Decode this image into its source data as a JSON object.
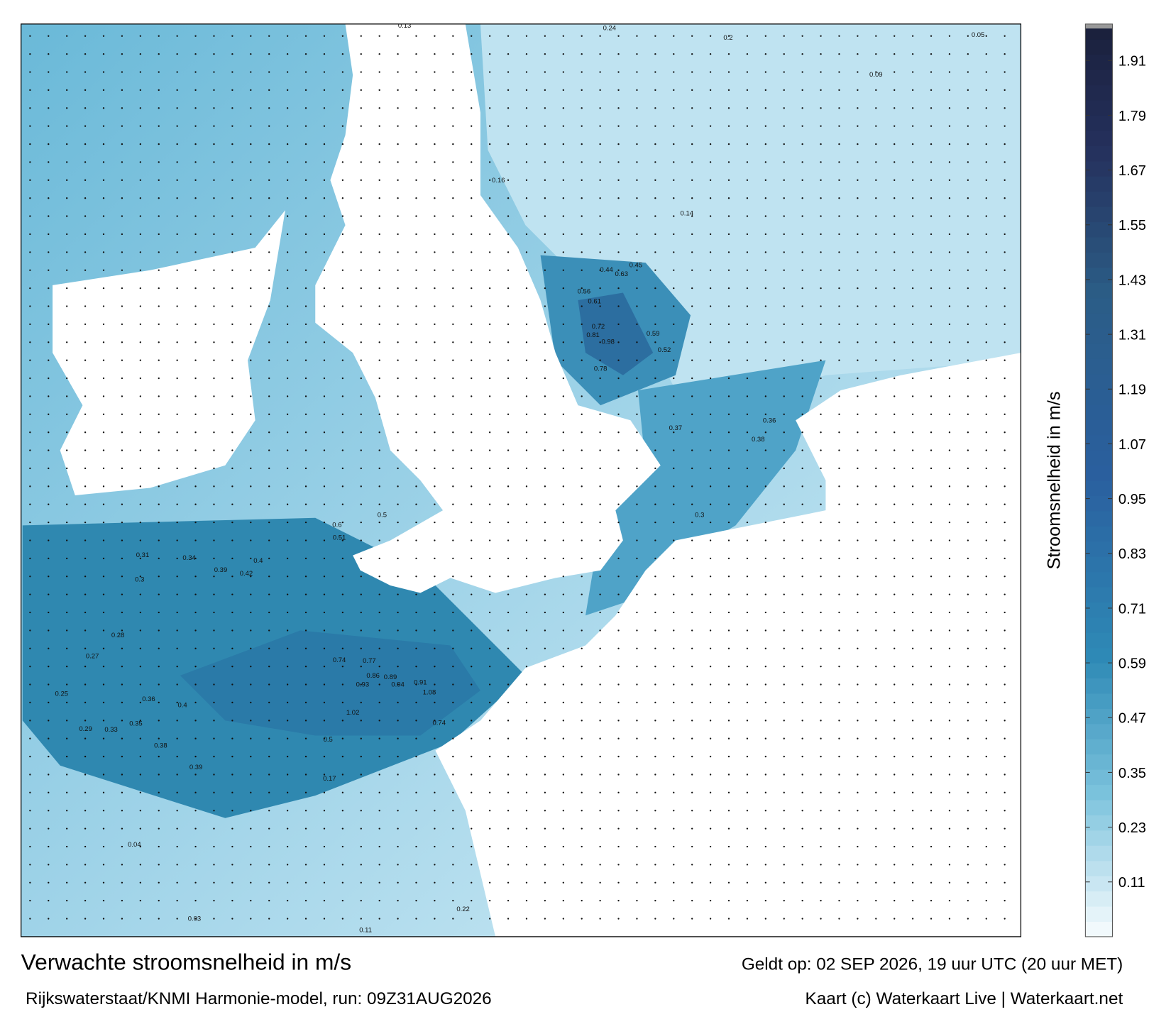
{
  "title": "Verwachte stroomsnelheid in m/s",
  "valid": "Geldt op: 02 SEP 2026, 19 uur UTC (20 uur MET)",
  "source": "Rijkswaterstaat/KNMI Harmonie-model, run: 09Z31AUG2026",
  "credit": "Kaart (c) Waterkaart Live | Waterkaart.net",
  "colorbar": {
    "label": "Stroomsnelheid in m/s",
    "lim": [
      -0.01,
      1.99
    ],
    "ticks": [
      0.11,
      0.23,
      0.35,
      0.47,
      0.59,
      0.71,
      0.83,
      0.95,
      1.07,
      1.19,
      1.31,
      1.43,
      1.55,
      1.67,
      1.79,
      1.91
    ]
  },
  "map": {
    "labels": [
      0.98,
      0.94,
      1.08,
      1.02,
      0.91,
      0.86,
      0.77,
      0.74,
      0.93,
      0.89,
      0.72,
      0.81,
      0.78,
      0.63,
      0.56,
      0.61,
      0.52,
      0.59,
      0.45,
      0.44,
      0.37,
      0.38,
      0.36,
      0.3,
      0.4,
      0.42,
      0.39,
      0.34,
      0.31,
      0.3,
      0.28,
      0.27,
      0.25,
      0.36,
      0.4,
      0.38,
      0.39,
      0.35,
      0.33,
      0.29,
      0.16,
      0.14,
      0.2,
      0.24,
      0.13,
      0.09,
      0.05,
      0.04,
      0.03,
      0.11,
      0.22,
      0.17,
      0.5,
      0.6,
      0.51,
      0.74,
      0.5
    ]
  }
}
